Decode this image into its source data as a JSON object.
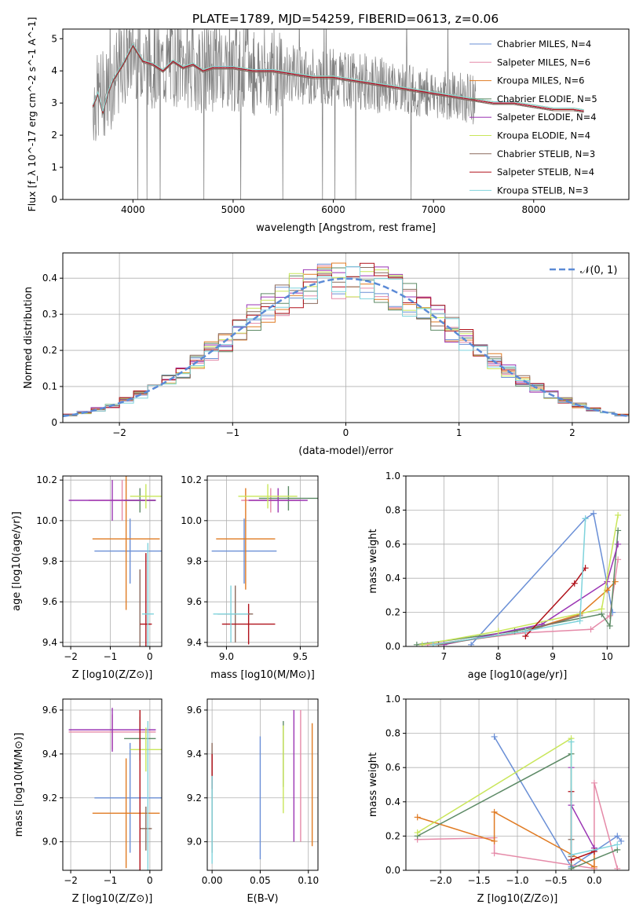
{
  "figure": {
    "title": "PLATE=1789, MJD=54259, FIBERID=0613, z=0.06"
  },
  "series_colors": {
    "Chabrier MILES": "#6a8fd6",
    "Salpeter MILES": "#e58aa8",
    "Kroupa MILES": "#e07b23",
    "Chabrier ELODIE": "#5d8a66",
    "Salpeter ELODIE": "#9b35b4",
    "Kroupa ELODIE": "#c9e65a",
    "Chabrier STELIB": "#8c6b5e",
    "Salpeter STELIB": "#b0111a",
    "Kroupa STELIB": "#7fd3dc",
    "data": "#808080"
  },
  "chart_data": [
    {
      "id": "spectrum",
      "type": "line",
      "title": "PLATE=1789, MJD=54259, FIBERID=0613, z=0.06",
      "xlabel": "wavelength [Angstrom, rest frame]",
      "ylabel": "Flux [f_λ 10^-17 erg cm^-2 s^-1 A^-1]",
      "xlim": [
        3300,
        8950
      ],
      "ylim": [
        0,
        5.3
      ],
      "xticks": [
        4000,
        5000,
        6000,
        7000,
        8000
      ],
      "yticks": [
        0,
        1,
        2,
        3,
        4,
        5
      ],
      "grid": false,
      "legend": "right",
      "data_wavelength": [
        3600,
        3700,
        3800,
        3900,
        4000,
        4100,
        4200,
        4300,
        4400,
        4500,
        4600,
        4700,
        4800,
        4900,
        5000,
        5200,
        5400,
        5600,
        5800,
        6000,
        6200,
        6400,
        6600,
        6800,
        7000,
        7200,
        7400
      ],
      "data_flux": [
        3.0,
        3.3,
        3.6,
        4.2,
        4.6,
        4.4,
        4.2,
        4.1,
        4.3,
        4.2,
        4.2,
        4.0,
        4.1,
        4.2,
        4.1,
        4.0,
        4.0,
        3.9,
        3.8,
        3.8,
        3.7,
        3.6,
        3.5,
        3.4,
        3.3,
        3.2,
        3.1
      ],
      "model_wavelength": [
        3600,
        3650,
        3700,
        3750,
        3800,
        3900,
        4000,
        4100,
        4200,
        4300,
        4400,
        4500,
        4600,
        4700,
        4800,
        5000,
        5200,
        5400,
        5600,
        5800,
        6000,
        6200,
        6400,
        6600,
        6800,
        7000,
        7200,
        7400,
        7600,
        7800,
        8000,
        8200,
        8400,
        8500
      ],
      "series": [
        {
          "name": "Chabrier MILES, N_SSP=4",
          "values": [
            2.9,
            3.3,
            2.7,
            3.3,
            3.7,
            4.2,
            4.8,
            4.3,
            4.2,
            4.0,
            4.3,
            4.1,
            4.2,
            4.0,
            4.1,
            4.1,
            4.0,
            4.0,
            3.9,
            3.8,
            3.8,
            3.7,
            3.6,
            3.5,
            3.4,
            3.3,
            3.2,
            3.1,
            3.0,
            3.0,
            2.9,
            2.8,
            2.8,
            2.75
          ]
        },
        {
          "name": "Salpeter MILES, N_SSP=6",
          "values": [
            2.9,
            3.3,
            2.7,
            3.3,
            3.7,
            4.2,
            4.8,
            4.3,
            4.2,
            4.0,
            4.3,
            4.1,
            4.2,
            4.0,
            4.1,
            4.1,
            4.0,
            4.0,
            3.9,
            3.8,
            3.8,
            3.7,
            3.6,
            3.5,
            3.4,
            3.3,
            3.2,
            3.1,
            3.0,
            3.0,
            2.9,
            2.8,
            2.8,
            2.75
          ]
        },
        {
          "name": "Kroupa MILES, N_SSP=6",
          "values": [
            2.9,
            3.3,
            2.7,
            3.3,
            3.7,
            4.2,
            4.8,
            4.3,
            4.2,
            4.0,
            4.3,
            4.1,
            4.2,
            4.0,
            4.1,
            4.1,
            4.0,
            4.0,
            3.9,
            3.8,
            3.8,
            3.7,
            3.6,
            3.5,
            3.4,
            3.3,
            3.2,
            3.1,
            3.0,
            3.0,
            2.9,
            2.8,
            2.8,
            2.75
          ]
        },
        {
          "name": "Chabrier ELODIE, N_SSP=5",
          "values": [
            2.9,
            3.3,
            2.7,
            3.3,
            3.7,
            4.2,
            4.8,
            4.3,
            4.2,
            4.0,
            4.3,
            4.1,
            4.2,
            4.0,
            4.1,
            4.1,
            4.0,
            4.0,
            3.9,
            3.8,
            3.8,
            3.7,
            3.6,
            3.5,
            3.4,
            3.3,
            3.2,
            3.1,
            3.0,
            3.0,
            2.9,
            2.8,
            2.8,
            2.75
          ]
        },
        {
          "name": "Salpeter ELODIE, N_SSP=4",
          "values": [
            2.9,
            3.3,
            2.7,
            3.3,
            3.7,
            4.2,
            4.8,
            4.3,
            4.2,
            4.0,
            4.3,
            4.1,
            4.2,
            4.0,
            4.1,
            4.1,
            4.0,
            4.0,
            3.9,
            3.8,
            3.8,
            3.7,
            3.6,
            3.5,
            3.4,
            3.3,
            3.2,
            3.1,
            3.0,
            3.0,
            2.9,
            2.8,
            2.8,
            2.75
          ]
        },
        {
          "name": "Kroupa ELODIE, N_SSP=4",
          "values": [
            2.9,
            3.3,
            2.7,
            3.3,
            3.7,
            4.2,
            4.8,
            4.3,
            4.2,
            4.0,
            4.3,
            4.1,
            4.2,
            4.0,
            4.1,
            4.1,
            4.0,
            4.0,
            3.9,
            3.8,
            3.8,
            3.7,
            3.6,
            3.5,
            3.4,
            3.3,
            3.2,
            3.1,
            3.0,
            3.0,
            2.9,
            2.8,
            2.8,
            2.75
          ]
        },
        {
          "name": "Chabrier STELIB, N_SSP=3",
          "values": [
            2.9,
            3.3,
            2.7,
            3.3,
            3.7,
            4.2,
            4.8,
            4.3,
            4.2,
            4.0,
            4.3,
            4.1,
            4.2,
            4.0,
            4.1,
            4.1,
            4.0,
            4.0,
            3.9,
            3.8,
            3.8,
            3.7,
            3.6,
            3.5,
            3.4,
            3.3,
            3.2,
            3.1,
            3.0,
            3.0,
            2.9,
            2.8,
            2.8,
            2.75
          ]
        },
        {
          "name": "Salpeter STELIB, N_SSP=4",
          "values": [
            2.9,
            3.3,
            2.7,
            3.3,
            3.7,
            4.2,
            4.8,
            4.3,
            4.2,
            4.0,
            4.3,
            4.1,
            4.2,
            4.0,
            4.1,
            4.1,
            4.0,
            4.0,
            3.9,
            3.8,
            3.8,
            3.7,
            3.6,
            3.5,
            3.4,
            3.3,
            3.2,
            3.1,
            3.0,
            3.0,
            2.9,
            2.8,
            2.8,
            2.75
          ]
        },
        {
          "name": "Kroupa STELIB, N_SSP=3",
          "values": [
            2.9,
            3.3,
            2.7,
            3.3,
            3.7,
            4.2,
            4.8,
            4.3,
            4.2,
            4.0,
            4.3,
            4.1,
            4.2,
            4.0,
            4.1,
            4.1,
            4.0,
            4.0,
            3.9,
            3.8,
            3.8,
            3.7,
            3.6,
            3.5,
            3.4,
            3.3,
            3.2,
            3.1,
            3.0,
            3.0,
            2.9,
            2.8,
            2.8,
            2.75
          ]
        }
      ]
    },
    {
      "id": "residuals",
      "type": "line",
      "xlabel": "(data-model)/error",
      "ylabel": "Normed distribution",
      "xlim": [
        -2.5,
        2.5
      ],
      "ylim": [
        0,
        0.47
      ],
      "xticks": [
        -2,
        -1,
        0,
        1,
        2
      ],
      "yticks": [
        0.0,
        0.1,
        0.2,
        0.3,
        0.4
      ],
      "grid": true,
      "legend": "top-right",
      "legend_label": "𝒩(0, 1)",
      "bins": 40
    },
    {
      "id": "age-vs-Z",
      "type": "scatter",
      "xlabel": "Z [log10(Z/Z⊙)]",
      "ylabel": "age  [log10(age/yr)]",
      "xlim": [
        -2.2,
        0.3
      ],
      "ylim": [
        9.38,
        10.22
      ],
      "xticks": [
        -2,
        -1,
        0
      ],
      "yticks": [
        9.4,
        9.6,
        9.8,
        10.0,
        10.2
      ],
      "grid": true,
      "points": [
        {
          "x": -0.5,
          "y": 9.85,
          "xerr": 0.9,
          "yerr": 0.0
        },
        {
          "x": -0.7,
          "y": 10.1,
          "xerr": 0.85,
          "yerr": 0.0
        },
        {
          "x": -0.6,
          "y": 9.91,
          "xerr": 0.85,
          "yerr": 0.0
        },
        {
          "x": -0.25,
          "y": 10.1,
          "xerr": 0.4,
          "yerr": 0.0
        },
        {
          "x": -0.95,
          "y": 10.1,
          "xerr": 1.1,
          "yerr": 0.0
        },
        {
          "x": -0.1,
          "y": 10.12,
          "xerr": 0.4,
          "yerr": 0.0
        },
        {
          "x": -0.25,
          "y": 9.41,
          "xerr": 0.0,
          "yerr": 0.0
        },
        {
          "x": -0.1,
          "y": 9.49,
          "xerr": 0.15,
          "yerr": 0.0
        },
        {
          "x": -0.05,
          "y": 9.54,
          "xerr": 0.15,
          "yerr": 0.0
        }
      ]
    },
    {
      "id": "age-vs-mass",
      "type": "scatter",
      "xlabel": "mass [log10(M/M⊙)]",
      "ylabel": "",
      "xlim": [
        8.87,
        9.62
      ],
      "ylim": [
        9.38,
        10.22
      ],
      "xticks": [
        9.0,
        9.5
      ],
      "yticks": [
        9.4,
        9.6,
        9.8,
        10.0,
        10.2
      ],
      "grid": true
    },
    {
      "id": "massweight-vs-age",
      "type": "line",
      "xlabel": "age  [log10(age/yr)]",
      "ylabel": "mass weight",
      "xlim": [
        6.3,
        10.4
      ],
      "ylim": [
        0,
        1.0
      ],
      "xticks": [
        7,
        8,
        9,
        10
      ],
      "yticks": [
        0.0,
        0.2,
        0.4,
        0.6,
        0.8,
        1.0
      ],
      "grid": true,
      "series": [
        {
          "name": "Chabrier MILES, N_SSP=4",
          "x": [
            7.5,
            9.6,
            9.75,
            10.1
          ],
          "y": [
            0.01,
            0.75,
            0.78,
            0.2
          ]
        },
        {
          "name": "Salpeter MILES, N_SSP=6",
          "x": [
            6.7,
            8.5,
            9.7,
            10.05,
            10.2
          ],
          "y": [
            0.01,
            0.08,
            0.1,
            0.18,
            0.51
          ]
        },
        {
          "name": "Kroupa MILES, N_SSP=6",
          "x": [
            6.8,
            8.5,
            9.5,
            10.0,
            10.15
          ],
          "y": [
            0.01,
            0.09,
            0.19,
            0.33,
            0.38
          ]
        },
        {
          "name": "Chabrier ELODIE, N_SSP=5",
          "x": [
            6.5,
            8.3,
            9.9,
            10.05,
            10.2
          ],
          "y": [
            0.01,
            0.09,
            0.19,
            0.12,
            0.68
          ]
        },
        {
          "name": "Salpeter ELODIE, N_SSP=4",
          "x": [
            7.0,
            8.8,
            10.0,
            10.2
          ],
          "y": [
            0.01,
            0.13,
            0.38,
            0.6
          ]
        },
        {
          "name": "Kroupa ELODIE, N_SSP=4",
          "x": [
            6.6,
            8.0,
            9.9,
            10.2
          ],
          "y": [
            0.01,
            0.09,
            0.22,
            0.77
          ]
        },
        {
          "name": "Chabrier STELIB, N_SSP=3",
          "x": [
            6.9,
            8.5,
            9.5
          ],
          "y": [
            0.01,
            0.09,
            0.18
          ]
        },
        {
          "name": "Salpeter STELIB, N_SSP=4",
          "x": [
            8.5,
            9.4,
            9.6
          ],
          "y": [
            0.06,
            0.37,
            0.46
          ]
        },
        {
          "name": "Kroupa STELIB, N_SSP=3",
          "x": [
            6.8,
            8.5,
            9.5,
            9.6
          ],
          "y": [
            0.01,
            0.09,
            0.15,
            0.75
          ]
        }
      ]
    },
    {
      "id": "mass-vs-Z",
      "type": "scatter",
      "xlabel": "Z [log10(Z/Z⊙)]",
      "ylabel": "mass [log10(M/M⊙)]",
      "xlim": [
        -2.2,
        0.3
      ],
      "ylim": [
        8.87,
        9.65
      ],
      "xticks": [
        -2,
        -1,
        0
      ],
      "yticks": [
        9.0,
        9.2,
        9.4,
        9.6
      ],
      "grid": true,
      "points": [
        {
          "x": -0.5,
          "y": 9.2,
          "xerr": 0.9,
          "yerr": 0.0
        },
        {
          "x": -0.95,
          "y": 9.5,
          "xerr": 1.1,
          "yerr": 0.0
        },
        {
          "x": -0.6,
          "y": 9.13,
          "xerr": 0.85,
          "yerr": 0.0
        },
        {
          "x": -0.25,
          "y": 9.47,
          "xerr": 0.4,
          "yerr": 0.0
        },
        {
          "x": -0.95,
          "y": 9.51,
          "xerr": 1.1,
          "yerr": 0.0
        },
        {
          "x": -0.1,
          "y": 9.42,
          "xerr": 0.4,
          "yerr": 0.0
        },
        {
          "x": -0.1,
          "y": 9.06,
          "xerr": 0.15,
          "yerr": 0.0
        },
        {
          "x": -0.25,
          "y": 9.1,
          "xerr": 0.0,
          "yerr": 0.0
        },
        {
          "x": -0.05,
          "y": 9.0,
          "xerr": 0.0,
          "yerr": 0.0
        }
      ]
    },
    {
      "id": "mass-vs-EBV",
      "type": "scatter",
      "xlabel": "E(B-V)",
      "ylabel": "",
      "xlim": [
        -0.005,
        0.11
      ],
      "ylim": [
        8.87,
        9.65
      ],
      "xticks": [
        0.0,
        0.05,
        0.1
      ],
      "yticks": [
        9.0,
        9.2,
        9.4,
        9.6
      ],
      "grid": true
    },
    {
      "id": "massweight-vs-Z",
      "type": "line",
      "xlabel": "Z [log10(Z/Z⊙)]",
      "ylabel": "mass weight",
      "xlim": [
        -2.45,
        0.45
      ],
      "ylim": [
        0,
        1.0
      ],
      "xticks": [
        -2.0,
        -1.5,
        -1.0,
        -0.5,
        0.0
      ],
      "yticks": [
        0.0,
        0.2,
        0.4,
        0.6,
        0.8,
        1.0
      ],
      "grid": true,
      "series": [
        {
          "name": "Chabrier MILES, N_SSP=4",
          "x": [
            -1.3,
            -0.3,
            0.3,
            0.35
          ],
          "y": [
            0.78,
            0.02,
            0.2,
            0.17
          ]
        },
        {
          "name": "Salpeter MILES, N_SSP=6",
          "x": [
            -2.3,
            -1.3,
            -1.3,
            0.0,
            0.0,
            0.3
          ],
          "y": [
            0.18,
            0.19,
            0.1,
            0.01,
            0.51,
            0.01
          ]
        },
        {
          "name": "Kroupa MILES, N_SSP=6",
          "x": [
            -2.3,
            -1.3,
            -1.3,
            0.0,
            0.0
          ],
          "y": [
            0.31,
            0.17,
            0.34,
            0.02,
            0.13
          ]
        },
        {
          "name": "Chabrier ELODIE, N_SSP=5",
          "x": [
            -2.3,
            -0.3,
            -0.3,
            0.3
          ],
          "y": [
            0.2,
            0.68,
            0.01,
            0.12
          ]
        },
        {
          "name": "Salpeter ELODIE, N_SSP=4",
          "x": [
            -0.3,
            -0.3,
            0.0
          ],
          "y": [
            0.6,
            0.38,
            0.13
          ]
        },
        {
          "name": "Kroupa ELODIE, N_SSP=4",
          "x": [
            -2.3,
            -0.3,
            -0.3
          ],
          "y": [
            0.22,
            0.77,
            0.09
          ]
        },
        {
          "name": "Chabrier STELIB, N_SSP=3",
          "x": [
            -0.3,
            -0.3
          ],
          "y": [
            0.18,
            0.08
          ]
        },
        {
          "name": "Salpeter STELIB, N_SSP=4",
          "x": [
            -0.3,
            -0.3,
            0.0
          ],
          "y": [
            0.46,
            0.06,
            0.11
          ]
        },
        {
          "name": "Kroupa STELIB, N_SSP=3",
          "x": [
            -0.3,
            -0.3,
            0.3
          ],
          "y": [
            0.75,
            0.09,
            0.15
          ]
        }
      ]
    }
  ]
}
